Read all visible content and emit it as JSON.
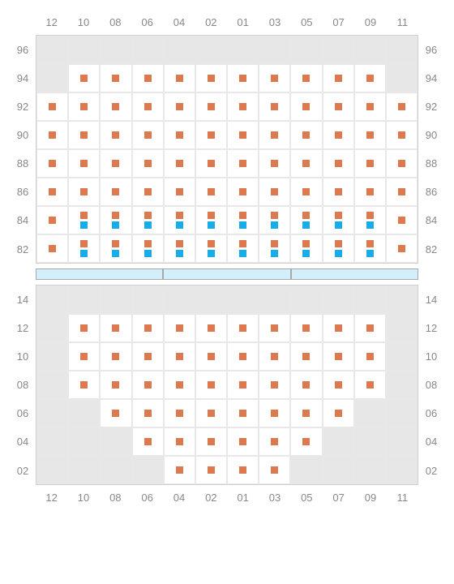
{
  "colors": {
    "marker_orange": "#dd794f",
    "marker_blue": "#16adea",
    "cell_empty_bg": "#e7e7e7",
    "cell_filled_bg": "#ffffff",
    "border": "#e8e8e8",
    "label": "#888888",
    "divider_bg": "#d4effc",
    "divider_border": "#a8a8a8"
  },
  "columns": [
    "12",
    "10",
    "08",
    "06",
    "04",
    "02",
    "01",
    "03",
    "05",
    "07",
    "09",
    "11"
  ],
  "top_section": {
    "rows": [
      {
        "label": "96",
        "cells": [
          {
            "t": "e"
          },
          {
            "t": "e"
          },
          {
            "t": "e"
          },
          {
            "t": "e"
          },
          {
            "t": "e"
          },
          {
            "t": "e"
          },
          {
            "t": "e"
          },
          {
            "t": "e"
          },
          {
            "t": "e"
          },
          {
            "t": "e"
          },
          {
            "t": "e"
          },
          {
            "t": "e"
          }
        ]
      },
      {
        "label": "94",
        "cells": [
          {
            "t": "e"
          },
          {
            "t": "f",
            "m": [
              "o"
            ]
          },
          {
            "t": "f",
            "m": [
              "o"
            ]
          },
          {
            "t": "f",
            "m": [
              "o"
            ]
          },
          {
            "t": "f",
            "m": [
              "o"
            ]
          },
          {
            "t": "f",
            "m": [
              "o"
            ]
          },
          {
            "t": "f",
            "m": [
              "o"
            ]
          },
          {
            "t": "f",
            "m": [
              "o"
            ]
          },
          {
            "t": "f",
            "m": [
              "o"
            ]
          },
          {
            "t": "f",
            "m": [
              "o"
            ]
          },
          {
            "t": "f",
            "m": [
              "o"
            ]
          },
          {
            "t": "e"
          }
        ]
      },
      {
        "label": "92",
        "cells": [
          {
            "t": "f",
            "m": [
              "o"
            ]
          },
          {
            "t": "f",
            "m": [
              "o"
            ]
          },
          {
            "t": "f",
            "m": [
              "o"
            ]
          },
          {
            "t": "f",
            "m": [
              "o"
            ]
          },
          {
            "t": "f",
            "m": [
              "o"
            ]
          },
          {
            "t": "f",
            "m": [
              "o"
            ]
          },
          {
            "t": "f",
            "m": [
              "o"
            ]
          },
          {
            "t": "f",
            "m": [
              "o"
            ]
          },
          {
            "t": "f",
            "m": [
              "o"
            ]
          },
          {
            "t": "f",
            "m": [
              "o"
            ]
          },
          {
            "t": "f",
            "m": [
              "o"
            ]
          },
          {
            "t": "f",
            "m": [
              "o"
            ]
          }
        ]
      },
      {
        "label": "90",
        "cells": [
          {
            "t": "f",
            "m": [
              "o"
            ]
          },
          {
            "t": "f",
            "m": [
              "o"
            ]
          },
          {
            "t": "f",
            "m": [
              "o"
            ]
          },
          {
            "t": "f",
            "m": [
              "o"
            ]
          },
          {
            "t": "f",
            "m": [
              "o"
            ]
          },
          {
            "t": "f",
            "m": [
              "o"
            ]
          },
          {
            "t": "f",
            "m": [
              "o"
            ]
          },
          {
            "t": "f",
            "m": [
              "o"
            ]
          },
          {
            "t": "f",
            "m": [
              "o"
            ]
          },
          {
            "t": "f",
            "m": [
              "o"
            ]
          },
          {
            "t": "f",
            "m": [
              "o"
            ]
          },
          {
            "t": "f",
            "m": [
              "o"
            ]
          }
        ]
      },
      {
        "label": "88",
        "cells": [
          {
            "t": "f",
            "m": [
              "o"
            ]
          },
          {
            "t": "f",
            "m": [
              "o"
            ]
          },
          {
            "t": "f",
            "m": [
              "o"
            ]
          },
          {
            "t": "f",
            "m": [
              "o"
            ]
          },
          {
            "t": "f",
            "m": [
              "o"
            ]
          },
          {
            "t": "f",
            "m": [
              "o"
            ]
          },
          {
            "t": "f",
            "m": [
              "o"
            ]
          },
          {
            "t": "f",
            "m": [
              "o"
            ]
          },
          {
            "t": "f",
            "m": [
              "o"
            ]
          },
          {
            "t": "f",
            "m": [
              "o"
            ]
          },
          {
            "t": "f",
            "m": [
              "o"
            ]
          },
          {
            "t": "f",
            "m": [
              "o"
            ]
          }
        ]
      },
      {
        "label": "86",
        "cells": [
          {
            "t": "f",
            "m": [
              "o"
            ]
          },
          {
            "t": "f",
            "m": [
              "o"
            ]
          },
          {
            "t": "f",
            "m": [
              "o"
            ]
          },
          {
            "t": "f",
            "m": [
              "o"
            ]
          },
          {
            "t": "f",
            "m": [
              "o"
            ]
          },
          {
            "t": "f",
            "m": [
              "o"
            ]
          },
          {
            "t": "f",
            "m": [
              "o"
            ]
          },
          {
            "t": "f",
            "m": [
              "o"
            ]
          },
          {
            "t": "f",
            "m": [
              "o"
            ]
          },
          {
            "t": "f",
            "m": [
              "o"
            ]
          },
          {
            "t": "f",
            "m": [
              "o"
            ]
          },
          {
            "t": "f",
            "m": [
              "o"
            ]
          }
        ]
      },
      {
        "label": "84",
        "cells": [
          {
            "t": "f",
            "m": [
              "o"
            ]
          },
          {
            "t": "f",
            "m": [
              "o",
              "b"
            ]
          },
          {
            "t": "f",
            "m": [
              "o",
              "b"
            ]
          },
          {
            "t": "f",
            "m": [
              "o",
              "b"
            ]
          },
          {
            "t": "f",
            "m": [
              "o",
              "b"
            ]
          },
          {
            "t": "f",
            "m": [
              "o",
              "b"
            ]
          },
          {
            "t": "f",
            "m": [
              "o",
              "b"
            ]
          },
          {
            "t": "f",
            "m": [
              "o",
              "b"
            ]
          },
          {
            "t": "f",
            "m": [
              "o",
              "b"
            ]
          },
          {
            "t": "f",
            "m": [
              "o",
              "b"
            ]
          },
          {
            "t": "f",
            "m": [
              "o",
              "b"
            ]
          },
          {
            "t": "f",
            "m": [
              "o"
            ]
          }
        ]
      },
      {
        "label": "82",
        "cells": [
          {
            "t": "f",
            "m": [
              "o"
            ]
          },
          {
            "t": "f",
            "m": [
              "o",
              "b"
            ]
          },
          {
            "t": "f",
            "m": [
              "o",
              "b"
            ]
          },
          {
            "t": "f",
            "m": [
              "o",
              "b"
            ]
          },
          {
            "t": "f",
            "m": [
              "o",
              "b"
            ]
          },
          {
            "t": "f",
            "m": [
              "o",
              "b"
            ]
          },
          {
            "t": "f",
            "m": [
              "o",
              "b"
            ]
          },
          {
            "t": "f",
            "m": [
              "o",
              "b"
            ]
          },
          {
            "t": "f",
            "m": [
              "o",
              "b"
            ]
          },
          {
            "t": "f",
            "m": [
              "o",
              "b"
            ]
          },
          {
            "t": "f",
            "m": [
              "o",
              "b"
            ]
          },
          {
            "t": "f",
            "m": [
              "o"
            ]
          }
        ]
      }
    ]
  },
  "bottom_section": {
    "rows": [
      {
        "label": "14",
        "cells": [
          {
            "t": "e"
          },
          {
            "t": "e"
          },
          {
            "t": "e"
          },
          {
            "t": "e"
          },
          {
            "t": "e"
          },
          {
            "t": "e"
          },
          {
            "t": "e"
          },
          {
            "t": "e"
          },
          {
            "t": "e"
          },
          {
            "t": "e"
          },
          {
            "t": "e"
          },
          {
            "t": "e"
          }
        ]
      },
      {
        "label": "12",
        "cells": [
          {
            "t": "e"
          },
          {
            "t": "f",
            "m": [
              "o"
            ]
          },
          {
            "t": "f",
            "m": [
              "o"
            ]
          },
          {
            "t": "f",
            "m": [
              "o"
            ]
          },
          {
            "t": "f",
            "m": [
              "o"
            ]
          },
          {
            "t": "f",
            "m": [
              "o"
            ]
          },
          {
            "t": "f",
            "m": [
              "o"
            ]
          },
          {
            "t": "f",
            "m": [
              "o"
            ]
          },
          {
            "t": "f",
            "m": [
              "o"
            ]
          },
          {
            "t": "f",
            "m": [
              "o"
            ]
          },
          {
            "t": "f",
            "m": [
              "o"
            ]
          },
          {
            "t": "e"
          }
        ]
      },
      {
        "label": "10",
        "cells": [
          {
            "t": "e"
          },
          {
            "t": "f",
            "m": [
              "o"
            ]
          },
          {
            "t": "f",
            "m": [
              "o"
            ]
          },
          {
            "t": "f",
            "m": [
              "o"
            ]
          },
          {
            "t": "f",
            "m": [
              "o"
            ]
          },
          {
            "t": "f",
            "m": [
              "o"
            ]
          },
          {
            "t": "f",
            "m": [
              "o"
            ]
          },
          {
            "t": "f",
            "m": [
              "o"
            ]
          },
          {
            "t": "f",
            "m": [
              "o"
            ]
          },
          {
            "t": "f",
            "m": [
              "o"
            ]
          },
          {
            "t": "f",
            "m": [
              "o"
            ]
          },
          {
            "t": "e"
          }
        ]
      },
      {
        "label": "08",
        "cells": [
          {
            "t": "e"
          },
          {
            "t": "f",
            "m": [
              "o"
            ]
          },
          {
            "t": "f",
            "m": [
              "o"
            ]
          },
          {
            "t": "f",
            "m": [
              "o"
            ]
          },
          {
            "t": "f",
            "m": [
              "o"
            ]
          },
          {
            "t": "f",
            "m": [
              "o"
            ]
          },
          {
            "t": "f",
            "m": [
              "o"
            ]
          },
          {
            "t": "f",
            "m": [
              "o"
            ]
          },
          {
            "t": "f",
            "m": [
              "o"
            ]
          },
          {
            "t": "f",
            "m": [
              "o"
            ]
          },
          {
            "t": "f",
            "m": [
              "o"
            ]
          },
          {
            "t": "e"
          }
        ]
      },
      {
        "label": "06",
        "cells": [
          {
            "t": "e"
          },
          {
            "t": "e"
          },
          {
            "t": "f",
            "m": [
              "o"
            ]
          },
          {
            "t": "f",
            "m": [
              "o"
            ]
          },
          {
            "t": "f",
            "m": [
              "o"
            ]
          },
          {
            "t": "f",
            "m": [
              "o"
            ]
          },
          {
            "t": "f",
            "m": [
              "o"
            ]
          },
          {
            "t": "f",
            "m": [
              "o"
            ]
          },
          {
            "t": "f",
            "m": [
              "o"
            ]
          },
          {
            "t": "f",
            "m": [
              "o"
            ]
          },
          {
            "t": "e"
          },
          {
            "t": "e"
          }
        ]
      },
      {
        "label": "04",
        "cells": [
          {
            "t": "e"
          },
          {
            "t": "e"
          },
          {
            "t": "e"
          },
          {
            "t": "f",
            "m": [
              "o"
            ]
          },
          {
            "t": "f",
            "m": [
              "o"
            ]
          },
          {
            "t": "f",
            "m": [
              "o"
            ]
          },
          {
            "t": "f",
            "m": [
              "o"
            ]
          },
          {
            "t": "f",
            "m": [
              "o"
            ]
          },
          {
            "t": "f",
            "m": [
              "o"
            ]
          },
          {
            "t": "e"
          },
          {
            "t": "e"
          },
          {
            "t": "e"
          }
        ]
      },
      {
        "label": "02",
        "cells": [
          {
            "t": "e"
          },
          {
            "t": "e"
          },
          {
            "t": "e"
          },
          {
            "t": "e"
          },
          {
            "t": "f",
            "m": [
              "o"
            ]
          },
          {
            "t": "f",
            "m": [
              "o"
            ]
          },
          {
            "t": "f",
            "m": [
              "o"
            ]
          },
          {
            "t": "f",
            "m": [
              "o"
            ]
          },
          {
            "t": "e"
          },
          {
            "t": "e"
          },
          {
            "t": "e"
          },
          {
            "t": "e"
          }
        ]
      }
    ]
  },
  "bottom_columns": [
    "12",
    "10",
    "08",
    "06",
    "04",
    "02",
    "01",
    "03",
    "05",
    "07",
    "09",
    "11"
  ]
}
